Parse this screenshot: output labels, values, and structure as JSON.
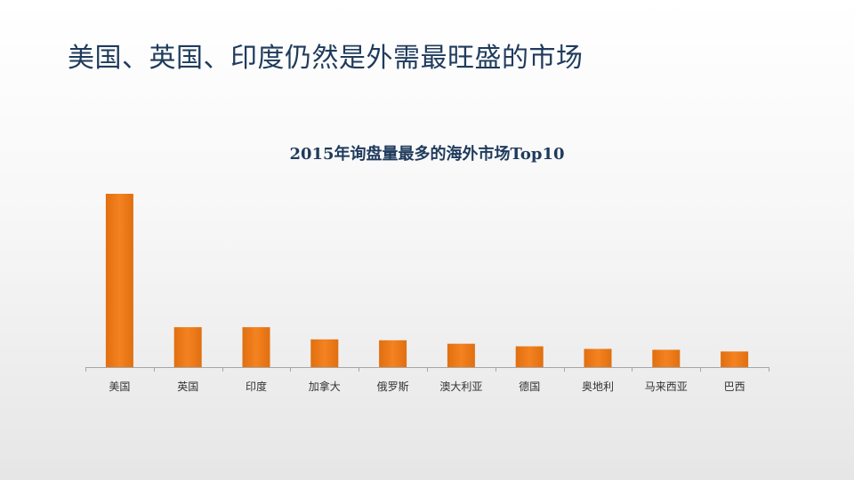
{
  "slide": {
    "title": "美国、英国、印度仍然是外需最旺盛的市场"
  },
  "colors": {
    "bar": "#f58220",
    "bar_dark": "#e06f10",
    "axis": "#a6a6a6",
    "title": "#1f3b5c"
  },
  "chart_data": {
    "type": "bar",
    "title": "2015年询盘量最多的海外市场Top10",
    "xlabel": "",
    "ylabel": "",
    "categories": [
      "美国",
      "英国",
      "印度",
      "加拿大",
      "俄罗斯",
      "澳大利亚",
      "德国",
      "奥地利",
      "马来西亚",
      "巴西"
    ],
    "values": [
      100,
      23,
      23,
      16,
      15.5,
      13.5,
      12,
      10.5,
      10,
      9
    ],
    "ylim": [
      0,
      100
    ],
    "grid": false,
    "legend": "none"
  }
}
